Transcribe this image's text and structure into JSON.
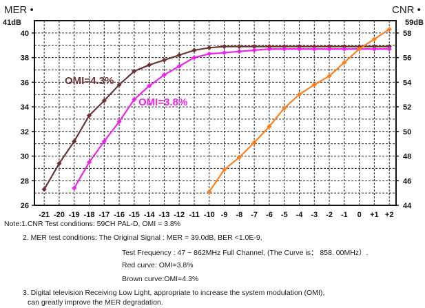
{
  "chart_data": {
    "type": "line",
    "left_axis_title": "MER",
    "right_axis_title": "CNR",
    "left_axis_unit": "41dB",
    "right_axis_unit": "59dB",
    "ylim_left": [
      26,
      41
    ],
    "ylim_right": [
      44,
      59
    ],
    "left_ticks": [
      26,
      28,
      30,
      32,
      34,
      36,
      38,
      40
    ],
    "right_ticks": [
      44,
      46,
      48,
      50,
      52,
      54,
      56,
      58
    ],
    "x": [
      -21,
      -20,
      -19,
      -18,
      -17,
      -16,
      -15,
      -14,
      -13,
      -12,
      -11,
      -10,
      -9,
      -8,
      -7,
      -6,
      -5,
      -4,
      -3,
      -2,
      -1,
      0,
      1,
      2
    ],
    "x_tick_labels": [
      "-21",
      "-20",
      "-19",
      "-18",
      "-17",
      "-16",
      "-15",
      "-14",
      "-13",
      "-12",
      "-11",
      "-10",
      "-9",
      "-8",
      "-7",
      "-6",
      "-5",
      "-4",
      "-3",
      "-2",
      "-1",
      "0",
      "+1",
      "+2"
    ],
    "grid": true,
    "series": [
      {
        "name": "OMI=4.3%",
        "color": "#6b3434",
        "axis": "left",
        "x": [
          -21,
          -20,
          -19,
          -18,
          -17,
          -16,
          -15,
          -14,
          -13,
          -12,
          -11,
          -10,
          -9,
          -8,
          -7,
          -6,
          -5,
          -4,
          -3,
          -2,
          -1,
          0,
          1,
          2
        ],
        "values": [
          27.3,
          29.4,
          31.2,
          33.3,
          34.5,
          35.8,
          36.9,
          37.4,
          37.8,
          38.2,
          38.6,
          38.8,
          38.9,
          38.9,
          38.9,
          38.9,
          38.9,
          38.9,
          38.9,
          38.9,
          38.9,
          38.9,
          38.9,
          38.9
        ]
      },
      {
        "name": "OMI=3.8%",
        "color": "#ee22ee",
        "axis": "left",
        "x": [
          -19,
          -18,
          -17,
          -16,
          -15,
          -14,
          -13,
          -12,
          -11,
          -10,
          -9,
          -8,
          -7,
          -6,
          -5,
          -4,
          -3,
          -2,
          -1,
          0,
          1,
          2
        ],
        "values": [
          27.4,
          29.5,
          31.2,
          32.8,
          34.6,
          35.7,
          36.6,
          37.3,
          38.0,
          38.3,
          38.4,
          38.5,
          38.6,
          38.7,
          38.7,
          38.7,
          38.7,
          38.7,
          38.7,
          38.7,
          38.7,
          38.7
        ]
      },
      {
        "name": "CNR",
        "color": "#ff7f1e",
        "axis": "right",
        "x": [
          -10,
          -9,
          -8,
          -7,
          -6,
          -5,
          -4,
          -3,
          -2,
          -1,
          0,
          1,
          2
        ],
        "values": [
          45.1,
          46.9,
          47.9,
          49.1,
          50.4,
          51.9,
          53.0,
          53.8,
          54.5,
          55.6,
          56.7,
          57.5,
          58.3
        ]
      }
    ],
    "annotations": [
      "OMI=4.3%",
      "OMI=3.8%"
    ],
    "legend_marks": {
      "left": "MER •",
      "right": "CNR •"
    }
  },
  "notes": {
    "line1": "Note:1.CNR Test conditions: 59CH PAL-D, OMI = 3.8%",
    "line2": "2. MER test conditions: The Original Signal : MER = 39.0dB, BER <1.0E-9,",
    "line3": "Test Frequency : 47 ~ 862MHz Full Channel, (The Curve is： 858. 00MHz）.",
    "line4": "Red curve: OMI=3.8%",
    "line5": "Brown curve:OMI=4.3%",
    "line6": "3. Digital television Receiving Low Light, appropriate to increase the system modulation (OMI),",
    "line7": "can greatly improve the MER degradation."
  }
}
